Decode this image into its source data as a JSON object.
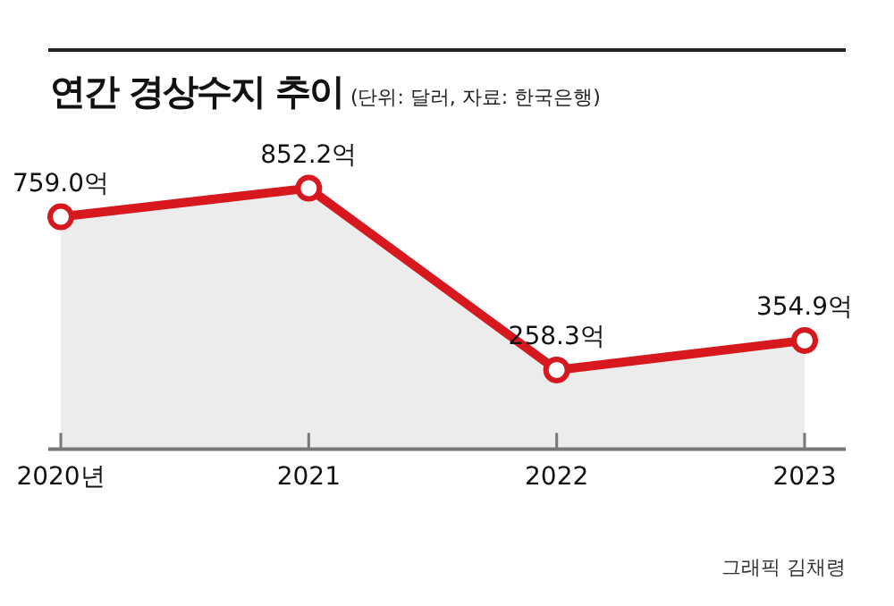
{
  "chart_data": {
    "type": "area",
    "title": "연간 경상수지 추이",
    "subtitle": "(단위: 달러, 자료: 한국은행)",
    "categories": [
      "2020년",
      "2021",
      "2022",
      "2023"
    ],
    "series": [
      {
        "color": "#d7191f",
        "values": [
          759.0,
          852.2,
          258.3,
          354.9
        ],
        "value_labels": [
          "759.0억",
          "852.2억",
          "258.3억",
          "354.9억"
        ]
      }
    ],
    "marker": "circle",
    "grid": false,
    "legend": false,
    "annotations": [
      "그래픽 김채령"
    ]
  }
}
